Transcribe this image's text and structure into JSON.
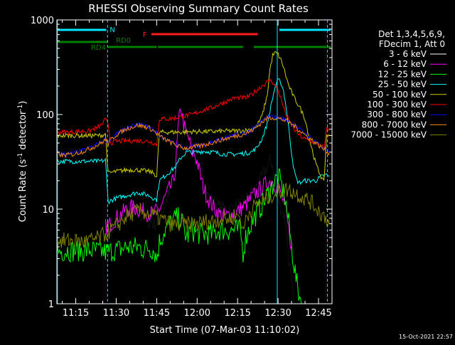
{
  "title": "RHESSI Observing Summary Count Rates",
  "xlabel": "Start Time (07-Mar-03 11:10:02)",
  "ylabel_main": "Count Rate (s",
  "ylabel_sup": "-1",
  "ylabel_mid": " detector",
  "ylabel_sup2": "-1",
  "ylabel_end": ")",
  "footer_date": "15-Oct-2021 22:57",
  "legend": {
    "header1": "Det 1,3,4,5,6,9,",
    "header2": "FDecim 1, Att 0"
  },
  "colors": {
    "background": "#000000",
    "axes": "#ffffff",
    "night_bar": "#00e5ff",
    "flare_bar": "#ff1a1a",
    "decim_bar": "#008000",
    "saa_vline": "#00e5ff"
  },
  "annotations": {
    "night_label": "N",
    "flare_label": "F",
    "rd0_label": "RD0",
    "rd4_label": "RD4"
  },
  "chart_data": {
    "type": "line",
    "title": "RHESSI Observing Summary Count Rates",
    "xlabel": "Start Time (07-Mar-03 11:10:02)",
    "ylabel": "Count Rate (s-1 detector-1)",
    "y_scale": "log",
    "ylim": [
      1,
      1000
    ],
    "xlim_min": [
      668,
      770
    ],
    "x_ticks": [
      {
        "label": "11:15",
        "min": 675
      },
      {
        "label": "11:30",
        "min": 690
      },
      {
        "label": "11:45",
        "min": 705
      },
      {
        "label": "12:00",
        "min": 720
      },
      {
        "label": "12:15",
        "min": 735
      },
      {
        "label": "12:30",
        "min": 750
      },
      {
        "label": "12:45",
        "min": 765
      }
    ],
    "y_ticks": [
      {
        "label": "1",
        "value": 1
      },
      {
        "label": "10",
        "value": 10
      },
      {
        "label": "100",
        "value": 100
      },
      {
        "label": "1000",
        "value": 1000
      }
    ],
    "grid": false,
    "legend_position": "right",
    "state_bars": {
      "night": [
        [
          668,
          686.3
        ],
        [
          750.5,
          769.5
        ]
      ],
      "flare": [
        [
          703,
          742.5
        ]
      ],
      "rd0": [
        [
          668,
          687
        ]
      ],
      "rd4": [
        [
          687,
          705
        ],
        [
          705.5,
          737
        ],
        [
          741,
          768
        ],
        [
          768.5,
          769.5
        ]
      ]
    },
    "vlines": [
      {
        "min": 668.2,
        "style": "solid"
      },
      {
        "min": 686.8,
        "style": "dashed"
      },
      {
        "min": 749.7,
        "style": "solid"
      },
      {
        "min": 768.3,
        "style": "dashed"
      }
    ],
    "series": [
      {
        "name": "3 - 6 keV",
        "color": "#000000",
        "x": [
          688,
          689,
          690,
          692,
          694,
          696,
          698,
          700,
          702,
          704,
          706,
          708,
          710,
          712,
          713,
          714,
          715,
          716,
          717,
          718,
          719,
          720,
          721,
          722,
          723,
          724,
          726,
          728,
          730,
          732,
          734,
          736,
          738,
          740,
          742,
          744,
          745,
          746,
          747,
          748,
          749,
          750,
          751,
          752,
          753,
          754,
          755,
          756
        ],
        "y": [
          5.5,
          6.5,
          7,
          7.5,
          8,
          8.5,
          9,
          8.5,
          7.5,
          7,
          7.5,
          11,
          15,
          22,
          30,
          48,
          65,
          70,
          65,
          52,
          48,
          55,
          40,
          28,
          18,
          14,
          12,
          10.5,
          10,
          10,
          10.5,
          11,
          12.5,
          14,
          17,
          21,
          25,
          28,
          32,
          30,
          15,
          13,
          10.5,
          9,
          7,
          3,
          1.5,
          1
        ]
      },
      {
        "name": "6 - 12 keV",
        "color": "#ff00ff",
        "x": [
          686,
          688,
          690,
          692,
          694,
          696,
          698,
          700,
          702,
          704,
          706,
          708,
          710,
          711,
          712,
          713,
          714,
          715,
          716,
          717,
          718,
          719,
          720,
          721,
          722,
          724,
          726,
          728,
          730,
          732,
          734,
          736,
          738,
          740,
          742,
          744,
          746,
          748,
          749,
          750,
          751,
          752,
          753,
          754,
          755
        ],
        "y": [
          6.5,
          7,
          8,
          9,
          10,
          10.5,
          10,
          9.5,
          9,
          9,
          10,
          13,
          17,
          19,
          27,
          75,
          120,
          80,
          60,
          55,
          40,
          38,
          32,
          24,
          18,
          13,
          10.5,
          9,
          8.5,
          8.5,
          9,
          10,
          11,
          13,
          15,
          17,
          19,
          20,
          18,
          17,
          15,
          12,
          9,
          6,
          4
        ]
      },
      {
        "name": "12 - 25 keV",
        "color": "#00ff00",
        "x": [
          668,
          670,
          672,
          674,
          676,
          678,
          680,
          682,
          684,
          686,
          688,
          690,
          692,
          694,
          696,
          698,
          700,
          702,
          704,
          705,
          706,
          708,
          710,
          712,
          714,
          716,
          718,
          720,
          722,
          724,
          726,
          728,
          730,
          732,
          734,
          736,
          737,
          738,
          740,
          742,
          744,
          746,
          748,
          749,
          750,
          751,
          752,
          753,
          754,
          755,
          756,
          757,
          758,
          759
        ],
        "y": [
          3.6,
          3.6,
          3.7,
          3.6,
          3.7,
          3.6,
          3.7,
          3.6,
          3.6,
          3.5,
          3.6,
          3.7,
          3.8,
          4,
          3.9,
          4,
          3.8,
          3.9,
          3.7,
          3,
          4.5,
          6,
          7,
          8,
          8,
          5,
          6,
          5.5,
          5.5,
          5.5,
          5.5,
          6,
          6,
          6,
          6,
          6,
          3.5,
          5,
          7,
          9,
          11,
          14,
          18,
          20,
          22,
          19,
          15,
          11,
          7,
          4,
          2.5,
          1.6,
          1.2,
          1
        ]
      },
      {
        "name": "25 - 50 keV",
        "color": "#00ffff",
        "x": [
          668,
          672,
          676,
          680,
          684,
          686,
          687,
          690,
          694,
          698,
          702,
          705,
          706,
          710,
          712,
          714,
          716,
          718,
          720,
          722,
          726,
          730,
          734,
          738,
          740,
          742,
          744,
          746,
          748,
          749,
          750,
          751,
          752,
          753,
          754,
          755,
          756,
          757,
          758,
          760,
          762,
          764,
          766,
          768,
          769
        ],
        "y": [
          32,
          32,
          32,
          32,
          32,
          33,
          12,
          13,
          14,
          15,
          14,
          12.5,
          20,
          25,
          28,
          35,
          40,
          40,
          40,
          41,
          40,
          38,
          38,
          39,
          40,
          44,
          55,
          80,
          150,
          200,
          230,
          220,
          180,
          120,
          70,
          40,
          25,
          20,
          19,
          20,
          20,
          20,
          22,
          23,
          22
        ]
      },
      {
        "name": "50 - 100 keV",
        "color": "#cccc00",
        "x": [
          668,
          672,
          676,
          680,
          684,
          686,
          687,
          690,
          694,
          698,
          702,
          704,
          705,
          706,
          710,
          714,
          718,
          722,
          726,
          730,
          734,
          738,
          740,
          742,
          744,
          746,
          747,
          748,
          749,
          750,
          751,
          752,
          753,
          754,
          756,
          758,
          760,
          762,
          764,
          766,
          767,
          768,
          769
        ],
        "y": [
          60,
          60,
          60,
          60,
          60,
          62,
          24,
          25,
          26,
          26,
          25,
          24,
          22,
          65,
          65,
          65,
          66,
          66,
          66,
          67,
          67,
          68,
          70,
          75,
          95,
          160,
          300,
          420,
          450,
          430,
          380,
          320,
          250,
          200,
          150,
          120,
          90,
          50,
          30,
          22,
          19,
          60,
          62
        ]
      },
      {
        "name": "100 - 300 keV",
        "color": "#ff0000",
        "x": [
          668,
          672,
          676,
          680,
          684,
          686,
          687,
          688,
          690,
          694,
          698,
          702,
          704,
          705,
          706,
          710,
          714,
          718,
          722,
          726,
          730,
          734,
          738,
          740,
          742,
          744,
          746,
          747,
          748,
          749,
          750,
          751,
          752,
          753,
          754,
          756,
          758,
          760,
          762,
          764,
          766,
          767,
          768,
          769
        ],
        "y": [
          65,
          65,
          66,
          67,
          75,
          88,
          80,
          50,
          52,
          53,
          53,
          52,
          50,
          48,
          90,
          90,
          95,
          100,
          110,
          120,
          135,
          150,
          150,
          160,
          180,
          200,
          220,
          230,
          220,
          200,
          180,
          150,
          120,
          100,
          85,
          70,
          60,
          55,
          52,
          50,
          48,
          42,
          70,
          68
        ]
      },
      {
        "name": "300 - 800 keV",
        "color": "#0000ff",
        "x": [
          668,
          670,
          674,
          678,
          682,
          684,
          686,
          687,
          688,
          690,
          694,
          698,
          702,
          704,
          706,
          710,
          714,
          716,
          718,
          722,
          726,
          730,
          734,
          738,
          740,
          742,
          744,
          746,
          748,
          750,
          752,
          754,
          756,
          758,
          760,
          762,
          764,
          766,
          768,
          769
        ],
        "y": [
          40,
          38,
          39,
          42,
          47,
          50,
          55,
          50,
          55,
          62,
          72,
          78,
          74,
          68,
          60,
          52,
          46,
          45,
          46,
          48,
          52,
          56,
          60,
          64,
          68,
          75,
          85,
          93,
          95,
          93,
          90,
          85,
          78,
          70,
          63,
          57,
          52,
          47,
          42,
          40
        ]
      },
      {
        "name": "800 - 7000 keV",
        "color": "#ff8c00",
        "x": [
          668,
          670,
          674,
          678,
          682,
          684,
          686,
          687,
          688,
          690,
          694,
          698,
          702,
          704,
          706,
          710,
          714,
          716,
          718,
          722,
          726,
          730,
          734,
          738,
          740,
          742,
          744,
          746,
          748,
          750,
          752,
          754,
          756,
          758,
          760,
          762,
          764,
          766,
          768,
          769
        ],
        "y": [
          39,
          37,
          38,
          41,
          46,
          49,
          54,
          49,
          54,
          61,
          71,
          77,
          73,
          67,
          59,
          51,
          45,
          44,
          45,
          47,
          51,
          55,
          59,
          63,
          67,
          73,
          83,
          91,
          93,
          91,
          88,
          83,
          76,
          68,
          61,
          55,
          50,
          45,
          41,
          39
        ]
      },
      {
        "name": "7000 - 15000 keV",
        "color": "#808000",
        "x": [
          668,
          670,
          674,
          678,
          682,
          684,
          686,
          688,
          690,
          692,
          694,
          696,
          698,
          700,
          702,
          704,
          706,
          708,
          710,
          712,
          714,
          716,
          718,
          720,
          722,
          724,
          726,
          728,
          730,
          732,
          734,
          736,
          737,
          738,
          740,
          742,
          744,
          746,
          748,
          750,
          752,
          754,
          756,
          758,
          760,
          762,
          764,
          766,
          768,
          769
        ],
        "y": [
          4.8,
          4.6,
          4.7,
          4.5,
          4.8,
          5,
          5.5,
          6,
          6.5,
          7.5,
          8.5,
          9,
          9.5,
          9.5,
          9,
          8.5,
          8,
          7.5,
          7,
          6.8,
          6.8,
          6.8,
          7,
          7,
          7.2,
          7.5,
          7.5,
          7.8,
          7.8,
          8,
          8.5,
          8.5,
          5.5,
          8,
          10,
          11,
          12,
          13,
          14.5,
          15,
          16,
          16,
          15,
          14,
          13,
          12,
          10.5,
          9,
          8,
          7
        ]
      }
    ]
  }
}
